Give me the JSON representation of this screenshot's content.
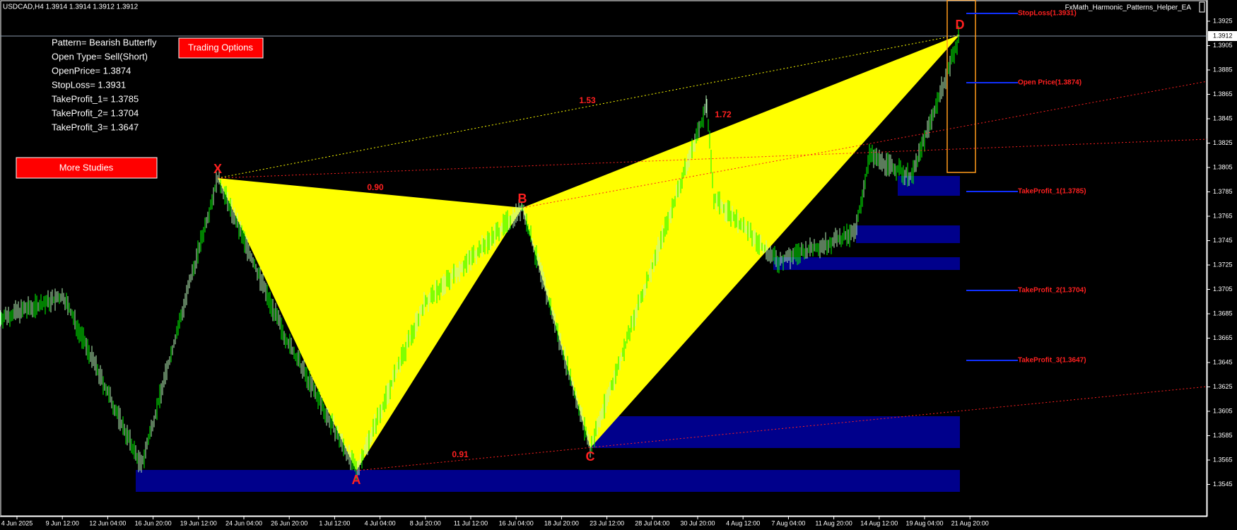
{
  "header": {
    "symbol": "USDCAD,H4  1.3914 1.3914 1.3912 1.3912",
    "ea_name": "FxMath_Harmonic_Patterns_Helper_EA"
  },
  "info": [
    "Pattern= Bearish Butterfly",
    "Open Type= Sell(Short)",
    "OpenPrice= 1.3874",
    "StopLoss= 1.3931",
    "TakeProfit_1= 1.3785",
    "TakeProfit_2= 1.3704",
    "TakeProfit_3= 1.3647"
  ],
  "buttons": {
    "trading_options": "Trading Options",
    "more_studies": "More Studies"
  },
  "pattern_points": [
    "X",
    "A",
    "B",
    "C",
    "D"
  ],
  "ratios": [
    "1.53",
    "1.72",
    "0.90",
    "0.91"
  ],
  "levels": [
    "StopLoss(1.3931)",
    "Open Price(1.3874)",
    "TakeProfit_1(1.3785)",
    "TakeProfit_2(1.3704)",
    "TakeProfit_3(1.3647)"
  ],
  "price_axis": {
    "ticks": [
      "1.3925",
      "1.3905",
      "1.3885",
      "1.3865",
      "1.3845",
      "1.3825",
      "1.3805",
      "1.3785",
      "1.3765",
      "1.3745",
      "1.3725",
      "1.3705",
      "1.3685",
      "1.3665",
      "1.3645",
      "1.3625",
      "1.3605",
      "1.3585",
      "1.3565",
      "1.3545"
    ],
    "current": "1.3912"
  },
  "time_axis": [
    "4 Jun 2025",
    "9 Jun 12:00",
    "12 Jun 04:00",
    "16 Jun 20:00",
    "19 Jun 12:00",
    "24 Jun 04:00",
    "26 Jun 20:00",
    "1 Jul 12:00",
    "4 Jul 04:00",
    "8 Jul 20:00",
    "11 Jul 12:00",
    "16 Jul 04:00",
    "18 Jul 20:00",
    "23 Jul 12:00",
    "28 Jul 04:00",
    "30 Jul 20:00",
    "4 Aug 12:00",
    "7 Aug 04:00",
    "11 Aug 20:00",
    "14 Aug 12:00",
    "19 Aug 04:00",
    "21 Aug 20:00"
  ]
}
